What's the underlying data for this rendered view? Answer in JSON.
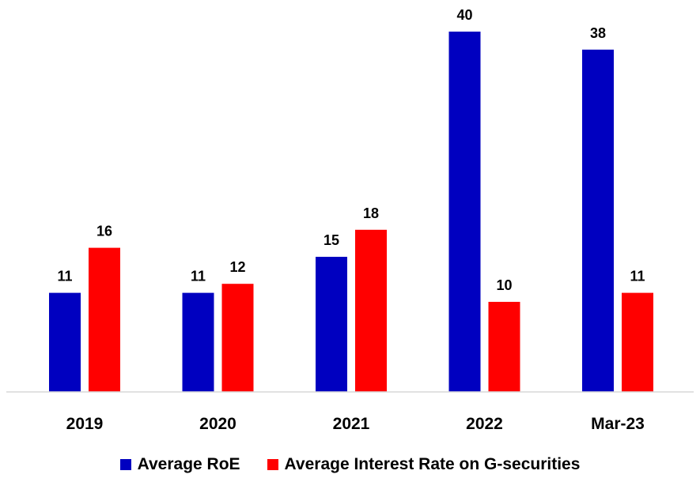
{
  "chart_data": {
    "type": "bar",
    "categories": [
      "2019",
      "2020",
      "2021",
      "2022",
      "Mar-23"
    ],
    "series": [
      {
        "name": "Average RoE",
        "color": "#0000C0",
        "values": [
          11,
          11,
          15,
          40,
          38
        ],
        "labels": [
          "11",
          "11",
          "15",
          "40",
          "38"
        ]
      },
      {
        "name": "Average Interest Rate on G-securities",
        "color": "#FF0000",
        "values": [
          16,
          12,
          18,
          10,
          11
        ],
        "labels": [
          "16",
          "12",
          "18",
          "10",
          "11"
        ]
      }
    ],
    "title": "",
    "xlabel": "",
    "ylabel": "",
    "legend_position": "bottom",
    "grid": false
  }
}
